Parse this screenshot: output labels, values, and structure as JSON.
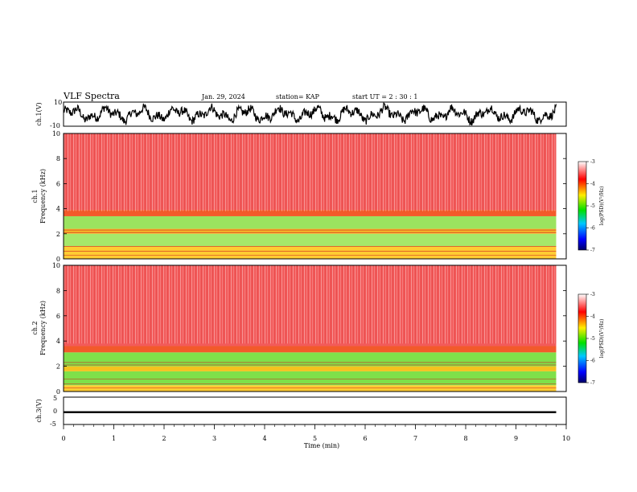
{
  "header": {
    "title": "VLF Spectra",
    "date": "Jan. 29, 2024",
    "station": "station= KAP",
    "start_time": "start  UT =  2 : 30 : 1"
  },
  "chart_data": [
    {
      "type": "line",
      "panel": "ch1-waveform",
      "ylabel": "ch.1(V)",
      "ylim": [
        -10,
        10
      ],
      "yticks": [
        "10",
        "-10"
      ],
      "xlim": [
        0,
        10
      ],
      "data_extent": [
        0,
        9.8
      ]
    },
    {
      "type": "heatmap",
      "panel": "ch1-spectrogram",
      "ylabel": "ch.1\nFrequency (kHz)",
      "ylim": [
        0,
        10
      ],
      "yticks": [
        "10",
        "8",
        "6",
        "4",
        "2",
        "0"
      ],
      "xlim": [
        0,
        10
      ],
      "data_extent": [
        0,
        9.8
      ],
      "bands": [
        {
          "from": 0.0,
          "to": 1.0,
          "color": "#ffcc33"
        },
        {
          "from": 1.0,
          "to": 2.0,
          "color": "#a6e86a"
        },
        {
          "from": 2.0,
          "to": 2.4,
          "color": "#f7b528"
        },
        {
          "from": 2.4,
          "to": 3.4,
          "color": "#9be35f"
        },
        {
          "from": 3.4,
          "to": 3.9,
          "color": "#f35a2a"
        },
        {
          "from": 3.9,
          "to": 10.0,
          "color": "#f25a5a"
        }
      ],
      "colorbar": {
        "label": "log(PSD)(V²/Hz)",
        "range": [
          -7,
          -3
        ],
        "ticks": [
          "-3",
          "-4",
          "-5",
          "-6",
          "-7"
        ]
      }
    },
    {
      "type": "heatmap",
      "panel": "ch2-spectrogram",
      "ylabel": "ch.2\nFrequency (kHz)",
      "ylim": [
        0,
        10
      ],
      "yticks": [
        "10",
        "8",
        "6",
        "4",
        "2",
        "0"
      ],
      "xlim": [
        0,
        10
      ],
      "data_extent": [
        0,
        9.8
      ],
      "bands": [
        {
          "from": 0.0,
          "to": 0.5,
          "color": "#ffcc33"
        },
        {
          "from": 0.5,
          "to": 1.6,
          "color": "#7fe04a"
        },
        {
          "from": 1.6,
          "to": 2.0,
          "color": "#f4c21f"
        },
        {
          "from": 2.0,
          "to": 3.1,
          "color": "#7fe04a"
        },
        {
          "from": 3.1,
          "to": 3.6,
          "color": "#f25a2a"
        },
        {
          "from": 3.6,
          "to": 10.0,
          "color": "#f25a5a"
        }
      ],
      "colorbar": {
        "label": "log(PSD)(V²/Hz)",
        "range": [
          -7,
          -3
        ],
        "ticks": [
          "-3",
          "-4",
          "-5",
          "-6",
          "-7"
        ]
      }
    },
    {
      "type": "line",
      "panel": "ch3-waveform",
      "ylabel": "ch.3(V)",
      "ylim": [
        -5,
        5
      ],
      "yticks": [
        "5",
        "0",
        "-5"
      ],
      "xlim": [
        0,
        10
      ],
      "data_extent": [
        0,
        9.8
      ],
      "level": -0.5
    }
  ],
  "xaxis": {
    "label": "Time (min)",
    "ticks": [
      "0",
      "1",
      "2",
      "3",
      "4",
      "5",
      "6",
      "7",
      "8",
      "9",
      "10"
    ]
  },
  "colors": {
    "spectrogram_background": "#f25a5a",
    "waveform": "#000000"
  }
}
